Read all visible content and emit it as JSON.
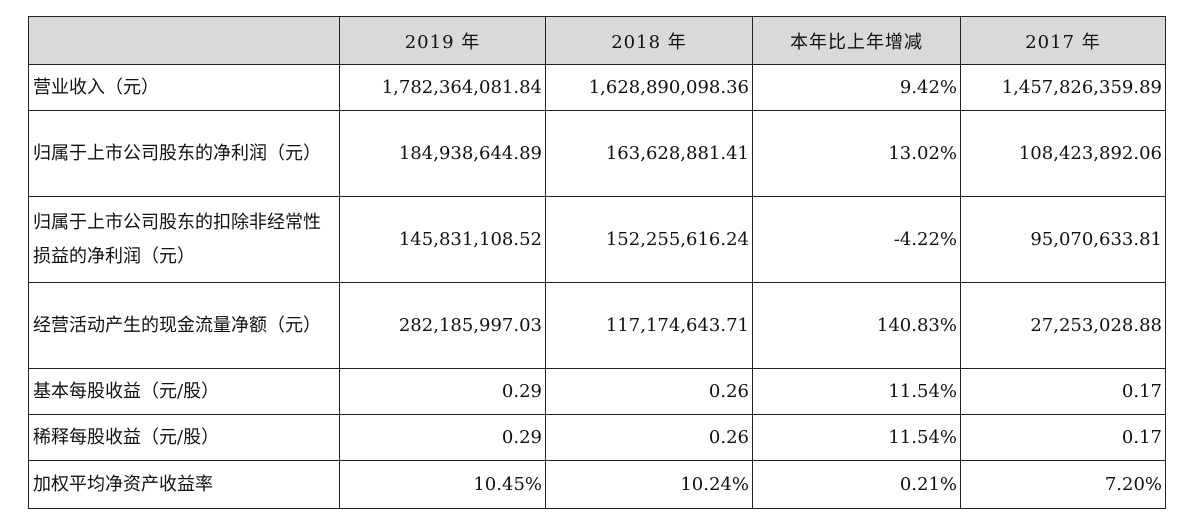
{
  "table": {
    "headers": [
      "",
      "2019 年",
      "2018 年",
      "本年比上年增减",
      "2017 年"
    ],
    "rows": [
      {
        "label": "营业收入（元）",
        "v2019": "1,782,364,081.84",
        "v2018": "1,628,890,098.36",
        "change": "9.42%",
        "v2017": "1,457,826,359.89"
      },
      {
        "label": "归属于上市公司股东的净利润（元）",
        "v2019": "184,938,644.89",
        "v2018": "163,628,881.41",
        "change": "13.02%",
        "v2017": "108,423,892.06"
      },
      {
        "label": "归属于上市公司股东的扣除非经常性损益的净利润（元）",
        "v2019": "145,831,108.52",
        "v2018": "152,255,616.24",
        "change": "-4.22%",
        "v2017": "95,070,633.81"
      },
      {
        "label": "经营活动产生的现金流量净额（元）",
        "v2019": "282,185,997.03",
        "v2018": "117,174,643.71",
        "change": "140.83%",
        "v2017": "27,253,028.88"
      },
      {
        "label": "基本每股收益（元/股）",
        "v2019": "0.29",
        "v2018": "0.26",
        "change": "11.54%",
        "v2017": "0.17"
      },
      {
        "label": "稀释每股收益（元/股）",
        "v2019": "0.29",
        "v2018": "0.26",
        "change": "11.54%",
        "v2017": "0.17"
      },
      {
        "label": "加权平均净资产收益率",
        "v2019": "10.45%",
        "v2018": "10.24%",
        "change": "0.21%",
        "v2017": "7.20%"
      }
    ]
  }
}
